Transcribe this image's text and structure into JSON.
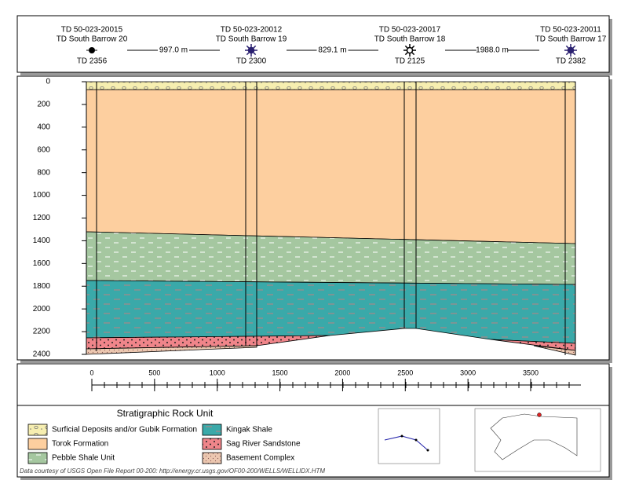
{
  "wells": [
    {
      "api": "TD 50-023-20015",
      "name": "TD South Barrow 20",
      "td": "TD 2356"
    },
    {
      "api": "TD 50-023-20012",
      "name": "TD South Barrow 19",
      "td": "TD 2300"
    },
    {
      "api": "TD 50-023-20017",
      "name": "TD South Barrow 18",
      "td": "TD 2125"
    },
    {
      "api": "TD 50-023-20011",
      "name": "TD South Barrow 17",
      "td": "TD 2382"
    }
  ],
  "spacings": [
    "997.0 m",
    "829.1 m",
    "1988.0 m"
  ],
  "depth_axis": {
    "ticks": [
      0,
      200,
      400,
      600,
      800,
      1000,
      1200,
      1400,
      1600,
      1800,
      2000,
      2200,
      2400
    ]
  },
  "distance_axis": {
    "ticks": [
      0,
      500,
      1000,
      1500,
      2000,
      2500,
      3000,
      3500
    ]
  },
  "legend": {
    "title": "Stratigraphic Rock Unit",
    "items": [
      "Surficial Deposits and/or Gubik Formation",
      "Torok Formation",
      "Pebble Shale Unit",
      "Kingak Shale",
      "Sag River Sandstone",
      "Basement Complex"
    ]
  },
  "credit": "Data courtesy of USGS Open File Report 00-200: http://energy.cr.usgs.gov/OF00-200/WELLS/WELLIDX.HTM"
}
